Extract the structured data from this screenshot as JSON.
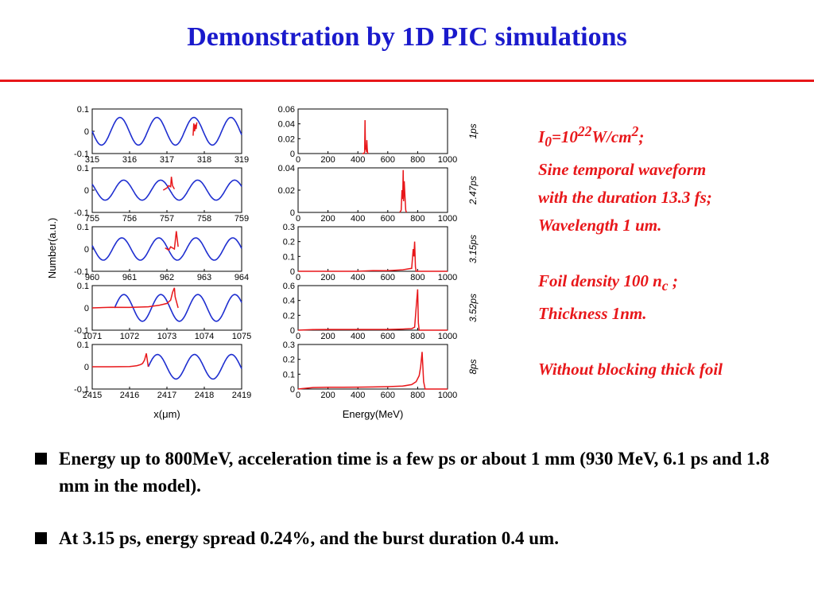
{
  "slide": {
    "title": "Demonstration by 1D PIC simulations",
    "colors": {
      "title": "#1a1acc",
      "rule": "#e8171a",
      "field": "#1f2fd0",
      "particles": "#e8171a"
    }
  },
  "parameters": {
    "intensity_base": "I",
    "intensity_sub": "0",
    "intensity_eq": "=10",
    "intensity_exp": "22",
    "intensity_unit": "W/cm",
    "intensity_unit_exp": "2",
    "intensity_end": ";",
    "line2": "Sine temporal waveform",
    "line3": "with the duration 13.3 fs;",
    "line4": "Wavelength 1 um.",
    "density_prefix": "Foil density 100 n",
    "density_sub": "c",
    "density_end": " ;",
    "line6": "Thickness 1nm.",
    "line7": "Without blocking thick foil"
  },
  "bullets": [
    "Energy up to 800MeV, acceleration time is a few ps or about 1 mm (930 MeV,  6.1 ps and 1.8 mm in the model).",
    "At 3.15 ps, energy spread 0.24%, and the burst duration 0.4 um."
  ],
  "chart_data": [
    {
      "type": "line",
      "group": "space-profiles",
      "ylabel": "Number(a.u.)",
      "xlabel": "x(μm)",
      "panels": [
        {
          "xlim": [
            315,
            319
          ],
          "xticks": [
            "315",
            "316",
            "317",
            "318",
            "319"
          ],
          "ylim": [
            -0.1,
            0.1
          ],
          "yticks": [
            "0.1",
            "0",
            "-0.1"
          ],
          "field": {
            "x0": 315,
            "period": 0.99,
            "amp": 0.062,
            "phase": 0.5,
            "ends": [
              315,
              319
            ]
          },
          "particles": {
            "x": [
              317.7,
              317.72,
              317.74,
              317.76,
              317.78,
              317.8
            ],
            "y": [
              -0.02,
              0.035,
              0.0,
              0.03,
              0.01,
              0.04
            ]
          }
        },
        {
          "xlim": [
            755,
            759
          ],
          "xticks": [
            "755",
            "756",
            "757",
            "758",
            "759"
          ],
          "ylim": [
            -0.1,
            0.1
          ],
          "yticks": [
            "0.1",
            "0",
            "-0.1"
          ],
          "field": {
            "x0": 755,
            "period": 0.99,
            "amp": 0.045,
            "phase": 0.4,
            "ends": [
              755,
              759
            ]
          },
          "particles": {
            "x": [
              756.9,
              756.95,
              757.0,
              757.05,
              757.1,
              757.12,
              757.15,
              757.2
            ],
            "y": [
              0.0,
              0.005,
              0.01,
              0.02,
              0.015,
              0.06,
              0.02,
              0.005
            ]
          }
        },
        {
          "xlim": [
            960,
            964
          ],
          "xticks": [
            "960",
            "961",
            "962",
            "963",
            "964"
          ],
          "ylim": [
            -0.1,
            0.1
          ],
          "yticks": [
            "0.1",
            "0",
            "-0.1"
          ],
          "field": {
            "x0": 960,
            "period": 0.99,
            "amp": 0.05,
            "phase": 0.45,
            "ends": [
              960,
              964
            ]
          },
          "particles": {
            "x": [
              961.95,
              962.0,
              962.05,
              962.1,
              962.15,
              962.2,
              962.25,
              962.3
            ],
            "y": [
              0.005,
              0.0,
              -0.005,
              0.01,
              0.005,
              0.0,
              0.08,
              0.01
            ]
          }
        },
        {
          "xlim": [
            1071,
            1075
          ],
          "xticks": [
            "1071",
            "1072",
            "1073",
            "1074",
            "1075"
          ],
          "ylim": [
            -0.1,
            0.1
          ],
          "yticks": [
            "0.1",
            "0",
            "-0.1"
          ],
          "field": {
            "x0": 1071.6,
            "period": 0.99,
            "amp": 0.06,
            "phase": 0.0,
            "ends": [
              1071.6,
              1075
            ]
          },
          "particles": {
            "x": [
              1071,
              1071.5,
              1072,
              1072.5,
              1072.8,
              1073.0,
              1073.1,
              1073.15,
              1073.2,
              1073.22,
              1073.3
            ],
            "y": [
              0.0,
              0.003,
              0.002,
              0.005,
              0.012,
              0.02,
              0.035,
              0.07,
              0.09,
              0.05,
              0.0
            ]
          }
        },
        {
          "xlim": [
            2415,
            2419
          ],
          "xticks": [
            "2415",
            "2416",
            "2417",
            "2418",
            "2419"
          ],
          "ylim": [
            -0.1,
            0.1
          ],
          "yticks": [
            "0.1",
            "0",
            "-0.1"
          ],
          "field": {
            "x0": 2416.5,
            "period": 0.99,
            "amp": 0.055,
            "phase": 0.0,
            "ends": [
              2416.5,
              2419
            ]
          },
          "particles": {
            "x": [
              2415,
              2415.5,
              2416,
              2416.1,
              2416.2,
              2416.3,
              2416.35,
              2416.4,
              2416.45,
              2416.5
            ],
            "y": [
              0.0,
              0.0,
              0.001,
              0.003,
              0.005,
              0.01,
              0.015,
              0.03,
              0.06,
              0.0
            ]
          }
        }
      ]
    },
    {
      "type": "line",
      "group": "energy-spectra",
      "xlabel": "Energy(MeV)",
      "panels": [
        {
          "time": "1ps",
          "xlim": [
            0,
            1000
          ],
          "xticks": [
            "0",
            "200",
            "400",
            "600",
            "800",
            "1000"
          ],
          "ylim": [
            0,
            0.06
          ],
          "yticks": [
            "0.06",
            "0.04",
            "0.02",
            "0"
          ],
          "x": [
            430,
            440,
            445,
            448,
            450,
            452,
            455,
            458,
            460,
            462,
            465,
            470
          ],
          "y": [
            0,
            0,
            0.002,
            0.045,
            0.015,
            0.005,
            0.01,
            0.002,
            0.018,
            0.008,
            0.001,
            0
          ]
        },
        {
          "time": "2.47ps",
          "xlim": [
            0,
            1000
          ],
          "xticks": [
            "0",
            "200",
            "400",
            "600",
            "800",
            "1000"
          ],
          "ylim": [
            0,
            0.04
          ],
          "yticks": [
            "0.04",
            "0.02",
            "0"
          ],
          "x": [
            680,
            690,
            695,
            700,
            703,
            706,
            710,
            715,
            720,
            725
          ],
          "y": [
            0,
            0.002,
            0.02,
            0.012,
            0.038,
            0.01,
            0.028,
            0.015,
            0.002,
            0
          ]
        },
        {
          "time": "3.15ps",
          "xlim": [
            0,
            1000
          ],
          "xticks": [
            "0",
            "200",
            "400",
            "600",
            "800",
            "1000"
          ],
          "ylim": [
            0,
            0.3
          ],
          "yticks": [
            "0.3",
            "0.2",
            "0.1",
            "0"
          ],
          "x": [
            0,
            400,
            500,
            600,
            700,
            760,
            770,
            775,
            780,
            785,
            790,
            800,
            1000
          ],
          "y": [
            0,
            0,
            0.005,
            0.004,
            0.01,
            0.02,
            0.15,
            0.1,
            0.2,
            0.03,
            0.0,
            0,
            0
          ]
        },
        {
          "time": "3.52ps",
          "xlim": [
            0,
            1000
          ],
          "xticks": [
            "0",
            "200",
            "400",
            "600",
            "800",
            "1000"
          ],
          "ylim": [
            0,
            0.6
          ],
          "yticks": [
            "0.6",
            "0.4",
            "0.2",
            "0"
          ],
          "x": [
            0,
            100,
            200,
            300,
            400,
            500,
            600,
            700,
            760,
            780,
            790,
            800,
            805,
            810,
            1000
          ],
          "y": [
            0,
            0.008,
            0.01,
            0.01,
            0.01,
            0.01,
            0.01,
            0.015,
            0.02,
            0.04,
            0.3,
            0.55,
            0.1,
            0,
            0
          ]
        },
        {
          "time": "8ps",
          "xlim": [
            0,
            1000
          ],
          "xticks": [
            "0",
            "200",
            "400",
            "600",
            "800",
            "1000"
          ],
          "ylim": [
            0,
            0.3
          ],
          "yticks": [
            "0.3",
            "0.2",
            "0.1",
            "0"
          ],
          "x": [
            0,
            100,
            200,
            300,
            400,
            500,
            600,
            700,
            760,
            790,
            810,
            820,
            830,
            840,
            850,
            1000
          ],
          "y": [
            0,
            0.01,
            0.012,
            0.012,
            0.013,
            0.014,
            0.016,
            0.02,
            0.03,
            0.05,
            0.09,
            0.15,
            0.25,
            0.05,
            0,
            0
          ]
        }
      ]
    }
  ]
}
